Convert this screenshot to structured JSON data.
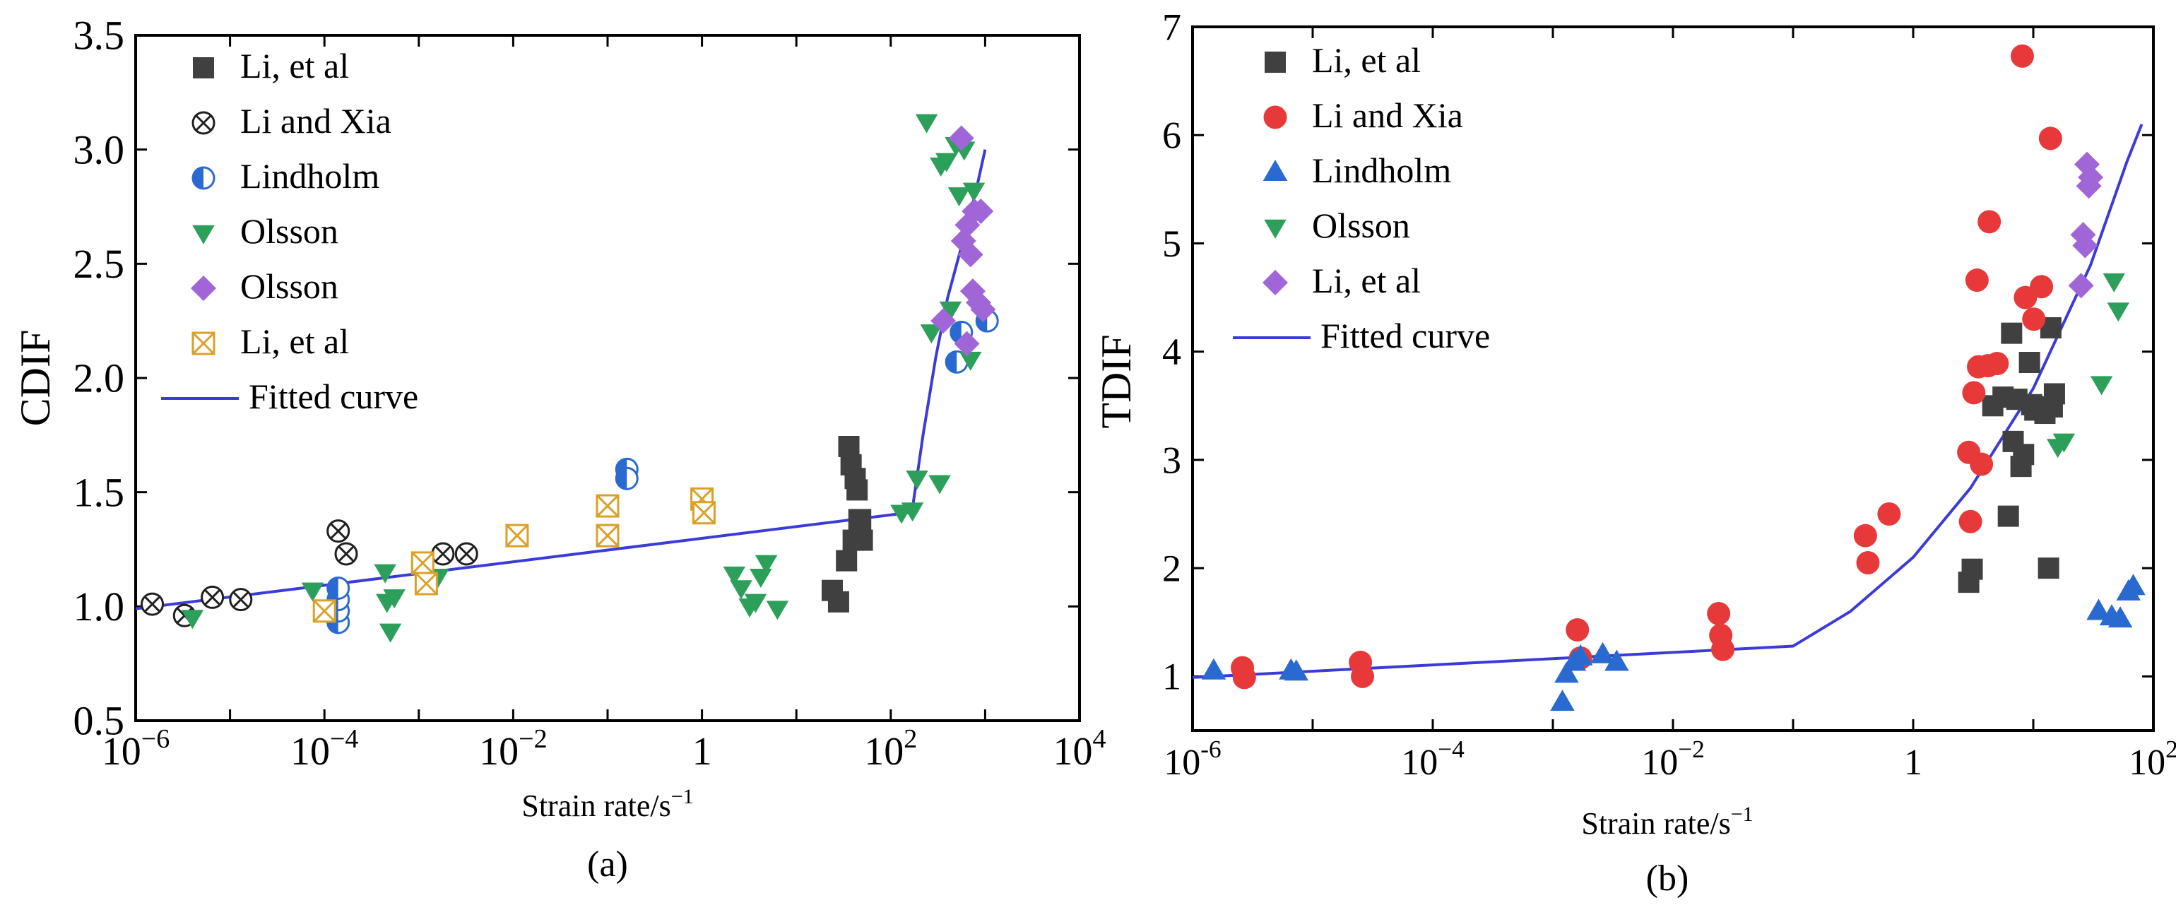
{
  "chart_data": [
    {
      "type": "scatter",
      "panel_label": "(a)",
      "xlabel": "Strain rate/s",
      "xlabel_exp": "−1",
      "ylabel": "CDIF",
      "x_scale": "log",
      "xlim": [
        1e-06,
        10000
      ],
      "ylim": [
        0.5,
        3.5
      ],
      "x_ticks": [
        {
          "v": 1e-06,
          "base": "10",
          "exp": "−6"
        },
        {
          "v": 0.0001,
          "base": "10",
          "exp": "−4"
        },
        {
          "v": 0.01,
          "base": "10",
          "exp": "−2"
        },
        {
          "v": 1,
          "base": "1",
          "exp": ""
        },
        {
          "v": 100,
          "base": "10",
          "exp": "2"
        },
        {
          "v": 10000,
          "base": "10",
          "exp": "4"
        }
      ],
      "y_ticks": [
        {
          "v": 0.5,
          "label": "0.5"
        },
        {
          "v": 1.0,
          "label": "1.0"
        },
        {
          "v": 1.5,
          "label": "1.5"
        },
        {
          "v": 2.0,
          "label": "2.0"
        },
        {
          "v": 2.5,
          "label": "2.5"
        },
        {
          "v": 3.0,
          "label": "3.0"
        },
        {
          "v": 3.5,
          "label": "3.5"
        }
      ],
      "legend_position": "top-left",
      "series": [
        {
          "name": "Li, et al",
          "marker": "square",
          "color": "#404040",
          "points": [
            [
              24,
              1.07
            ],
            [
              28,
              1.02
            ],
            [
              34,
              1.2
            ],
            [
              36,
              1.7
            ],
            [
              38,
              1.62
            ],
            [
              40,
              1.29
            ],
            [
              42,
              1.56
            ],
            [
              44,
              1.51
            ],
            [
              46,
              1.38
            ],
            [
              48,
              1.38
            ],
            [
              50,
              1.29
            ]
          ]
        },
        {
          "name": "Li and Xia",
          "marker": "circle-x",
          "color": "#202020",
          "points": [
            [
              1.5e-06,
              1.01
            ],
            [
              3.3e-06,
              0.96
            ],
            [
              6.5e-06,
              1.04
            ],
            [
              1.3e-05,
              1.03
            ],
            [
              0.00014,
              1.33
            ],
            [
              0.00017,
              1.23
            ],
            [
              0.0018,
              1.23
            ],
            [
              0.0032,
              1.23
            ]
          ]
        },
        {
          "name": "Lindholm",
          "marker": "half-circle",
          "color": "#2a6ad0",
          "points": [
            [
              0.00014,
              0.93
            ],
            [
              0.00014,
              0.98
            ],
            [
              0.00014,
              1.03
            ],
            [
              0.00014,
              1.08
            ],
            [
              0.16,
              1.6
            ],
            [
              0.16,
              1.56
            ],
            [
              500,
              2.07
            ],
            [
              560,
              2.2
            ],
            [
              1050,
              2.25
            ]
          ]
        },
        {
          "name": "Olsson",
          "marker": "tri-down",
          "color": "#2ca05a",
          "points": [
            [
              4e-06,
              0.95
            ],
            [
              7.5e-05,
              1.07
            ],
            [
              0.00044,
              1.15
            ],
            [
              0.00046,
              1.02
            ],
            [
              0.0005,
              0.89
            ],
            [
              0.00055,
              1.04
            ],
            [
              0.0016,
              1.13
            ],
            [
              2.2,
              1.14
            ],
            [
              2.6,
              1.08
            ],
            [
              3.2,
              1.0
            ],
            [
              3.7,
              1.02
            ],
            [
              4.2,
              1.13
            ],
            [
              4.8,
              1.19
            ],
            [
              6.3,
              0.99
            ],
            [
              130,
              1.41
            ],
            [
              170,
              1.42
            ],
            [
              190,
              1.56
            ],
            [
              240,
              3.12
            ],
            [
              270,
              2.2
            ],
            [
              330,
              1.54
            ],
            [
              340,
              2.93
            ],
            [
              390,
              2.95
            ],
            [
              430,
              2.3
            ],
            [
              490,
              3.02
            ],
            [
              530,
              2.8
            ],
            [
              600,
              3.0
            ],
            [
              700,
              2.08
            ],
            [
              760,
              2.82
            ]
          ]
        },
        {
          "name": "Olsson",
          "marker": "diamond",
          "color": "#a066d8",
          "points": [
            [
              360,
              2.25
            ],
            [
              560,
              3.05
            ],
            [
              590,
              2.6
            ],
            [
              640,
              2.15
            ],
            [
              650,
              2.67
            ],
            [
              700,
              2.54
            ],
            [
              740,
              2.38
            ],
            [
              770,
              2.73
            ],
            [
              850,
              2.33
            ],
            [
              900,
              2.73
            ],
            [
              950,
              2.3
            ]
          ]
        },
        {
          "name": "Li, et al",
          "marker": "box-x",
          "color": "#d9a128",
          "points": [
            [
              0.0001,
              0.98
            ],
            [
              0.0011,
              1.19
            ],
            [
              0.0012,
              1.1
            ],
            [
              0.011,
              1.31
            ],
            [
              0.1,
              1.44
            ],
            [
              0.1,
              1.31
            ],
            [
              1.0,
              1.47
            ],
            [
              1.05,
              1.41
            ]
          ]
        }
      ],
      "fitted_curve": {
        "name": "Fitted curve",
        "color": "#3b3bd8",
        "points": [
          [
            1e-06,
            0.99
          ],
          [
            150,
            1.41
          ],
          [
            170,
            1.43
          ],
          [
            220,
            1.75
          ],
          [
            300,
            2.09
          ],
          [
            400,
            2.35
          ],
          [
            600,
            2.62
          ],
          [
            800,
            2.82
          ],
          [
            1000,
            3.0
          ]
        ]
      }
    },
    {
      "type": "scatter",
      "panel_label": "(b)",
      "xlabel": "Strain rate/s",
      "xlabel_exp": "−1",
      "ylabel": "TDIF",
      "x_scale": "log",
      "xlim": [
        1e-06,
        100
      ],
      "ylim": [
        0.5,
        7
      ],
      "x_ticks": [
        {
          "v": 1e-06,
          "base": "10",
          "exp": "-6"
        },
        {
          "v": 0.0001,
          "base": "10",
          "exp": "−4"
        },
        {
          "v": 0.01,
          "base": "10",
          "exp": "−2"
        },
        {
          "v": 1,
          "base": "1",
          "exp": ""
        },
        {
          "v": 100,
          "base": "10",
          "exp": "2"
        }
      ],
      "y_ticks": [
        {
          "v": 1,
          "label": "1"
        },
        {
          "v": 2,
          "label": "2"
        },
        {
          "v": 3,
          "label": "3"
        },
        {
          "v": 4,
          "label": "4"
        },
        {
          "v": 5,
          "label": "5"
        },
        {
          "v": 6,
          "label": "6"
        },
        {
          "v": 7,
          "label": "7"
        }
      ],
      "legend_position": "top-left",
      "series": [
        {
          "name": "Li, et al",
          "marker": "square",
          "color": "#404040",
          "points": [
            [
              2.9,
              1.87
            ],
            [
              3.1,
              1.99
            ],
            [
              4.6,
              3.5
            ],
            [
              5.6,
              3.58
            ],
            [
              6.2,
              2.48
            ],
            [
              6.6,
              4.17
            ],
            [
              6.8,
              3.17
            ],
            [
              7.3,
              3.56
            ],
            [
              7.9,
              2.94
            ],
            [
              8.3,
              3.05
            ],
            [
              9.3,
              3.9
            ],
            [
              9.7,
              3.51
            ],
            [
              10.3,
              3.46
            ],
            [
              12.5,
              3.43
            ],
            [
              13.4,
              2.0
            ],
            [
              14,
              4.22
            ],
            [
              14.4,
              3.49
            ],
            [
              15,
              3.61
            ]
          ]
        },
        {
          "name": "Li and Xia",
          "marker": "circle",
          "color": "#e8393a",
          "points": [
            [
              2.6e-06,
              1.08
            ],
            [
              2.7e-06,
              0.99
            ],
            [
              2.5e-05,
              1.13
            ],
            [
              2.6e-05,
              1.0
            ],
            [
              0.0016,
              1.43
            ],
            [
              0.0017,
              1.17
            ],
            [
              0.024,
              1.58
            ],
            [
              0.025,
              1.38
            ],
            [
              0.026,
              1.25
            ],
            [
              0.4,
              2.3
            ],
            [
              0.42,
              2.05
            ],
            [
              0.63,
              2.5
            ],
            [
              2.9,
              3.07
            ],
            [
              3.0,
              2.43
            ],
            [
              3.2,
              3.62
            ],
            [
              3.4,
              4.66
            ],
            [
              3.5,
              3.86
            ],
            [
              3.7,
              2.96
            ],
            [
              4.2,
              3.87
            ],
            [
              4.3,
              5.2
            ],
            [
              5.0,
              3.89
            ],
            [
              8.1,
              6.73
            ],
            [
              8.6,
              4.5
            ],
            [
              10.1,
              4.3
            ],
            [
              11.7,
              4.6
            ],
            [
              13.9,
              5.97
            ]
          ]
        },
        {
          "name": "Lindholm",
          "marker": "tri-up",
          "color": "#2a6ad0",
          "points": [
            [
              1.5e-06,
              1.05
            ],
            [
              6.6e-06,
              1.05
            ],
            [
              7.3e-06,
              1.04
            ],
            [
              0.0012,
              0.76
            ],
            [
              0.0013,
              1.02
            ],
            [
              0.0015,
              1.13
            ],
            [
              0.0017,
              1.18
            ],
            [
              0.0026,
              1.2
            ],
            [
              0.0034,
              1.13
            ],
            [
              35,
              1.6
            ],
            [
              45,
              1.55
            ],
            [
              53,
              1.53
            ],
            [
              62,
              1.78
            ],
            [
              68,
              1.83
            ]
          ]
        },
        {
          "name": "Olsson",
          "marker": "tri-down",
          "color": "#2ca05a",
          "points": [
            [
              16,
              3.12
            ],
            [
              18,
              3.17
            ],
            [
              37,
              3.7
            ],
            [
              47,
              4.65
            ],
            [
              51,
              4.38
            ]
          ]
        },
        {
          "name": "Li, et al",
          "marker": "diamond",
          "color": "#a066d8",
          "points": [
            [
              25,
              4.61
            ],
            [
              26,
              5.08
            ],
            [
              27,
              4.98
            ],
            [
              28,
              5.73
            ],
            [
              29,
              5.53
            ],
            [
              30,
              5.61
            ]
          ]
        }
      ],
      "fitted_curve": {
        "name": "Fitted curve",
        "color": "#3b3bd8",
        "points": [
          [
            1e-06,
            0.99
          ],
          [
            0.1,
            1.28
          ],
          [
            0.3,
            1.6
          ],
          [
            1,
            2.1
          ],
          [
            3,
            2.74
          ],
          [
            10,
            3.66
          ],
          [
            30,
            4.8
          ],
          [
            60,
            5.75
          ],
          [
            80,
            6.1
          ]
        ]
      }
    }
  ]
}
